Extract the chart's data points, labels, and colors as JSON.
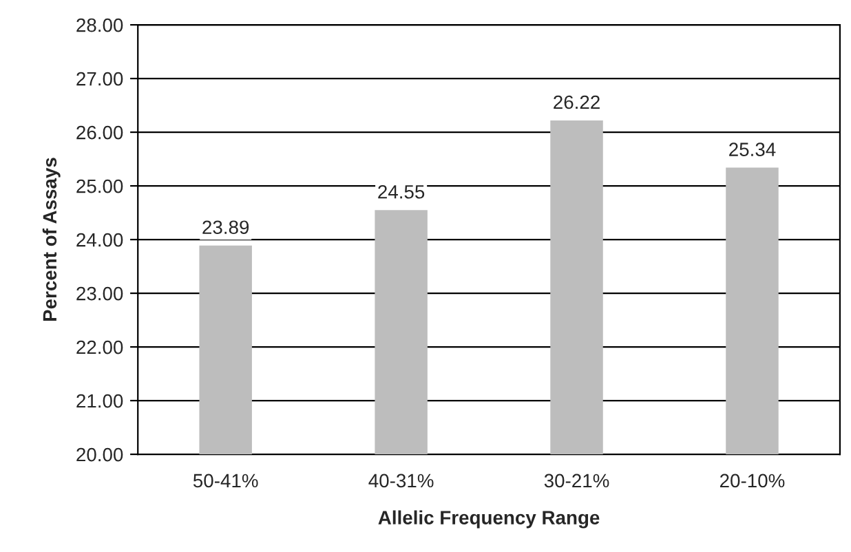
{
  "chart_data": {
    "type": "bar",
    "xlabel": "Allelic Frequency Range",
    "ylabel": "Percent of Assays",
    "categories": [
      "50-41%",
      "40-31%",
      "30-21%",
      "20-10%"
    ],
    "values": [
      23.89,
      24.55,
      26.22,
      25.34
    ],
    "color": "#bdbdbd",
    "ylim": [
      20,
      28
    ],
    "yticks": [
      {
        "value": 20,
        "label": "20.00"
      },
      {
        "value": 21,
        "label": "21.00"
      },
      {
        "value": 22,
        "label": "22.00"
      },
      {
        "value": 23,
        "label": "23.00"
      },
      {
        "value": 24,
        "label": "24.00"
      },
      {
        "value": 25,
        "label": "25.00"
      },
      {
        "value": 26,
        "label": "26.00"
      },
      {
        "value": 27,
        "label": "27.00"
      },
      {
        "value": 28,
        "label": "28.00"
      }
    ],
    "grid": "y",
    "data_labels": true
  }
}
